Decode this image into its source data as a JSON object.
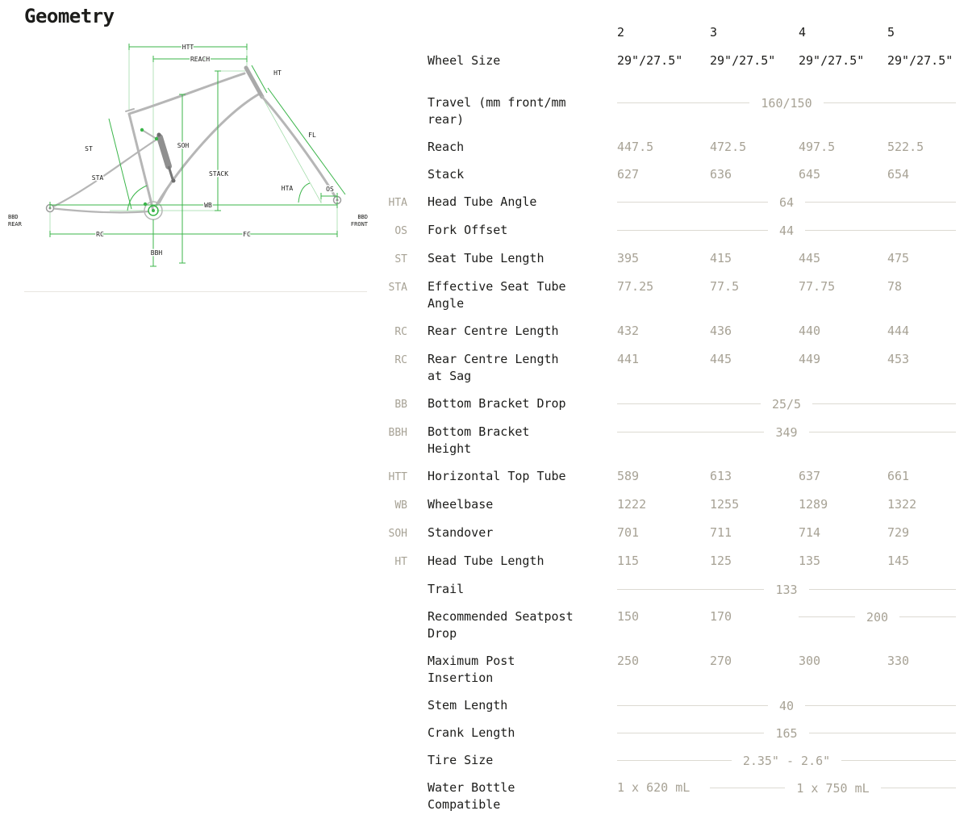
{
  "page": {
    "title": "Geometry"
  },
  "colors": {
    "accent_green": "#3bb54a",
    "muted_value": "#a7a295",
    "text": "#1c1c1a",
    "span_line": "#dcdad2"
  },
  "diagram": {
    "labels": {
      "htt": "HTT",
      "reach": "REACH",
      "ht": "HT",
      "fl": "FL",
      "soh": "SOH",
      "st": "ST",
      "stack": "STACK",
      "sta": "STA",
      "hta": "HTA",
      "os": "OS",
      "wb": "WB",
      "rc": "RC",
      "fc": "FC",
      "bbh": "BBH",
      "bbd": "BBD",
      "rear": "REAR",
      "front": "FRONT"
    }
  },
  "table": {
    "size_headers": [
      "2",
      "3",
      "4",
      "5"
    ],
    "rows": [
      {
        "abbr": "",
        "label": "Wheel Size",
        "emphasis": true,
        "values": [
          "29\"/27.5\"",
          "29\"/27.5\"",
          "29\"/27.5\"",
          "29\"/27.5\""
        ]
      },
      {
        "abbr": "",
        "label": "Travel (mm front/mm rear)",
        "values": [],
        "span_value": "160/150"
      },
      {
        "abbr": "",
        "label": "Reach",
        "values": [
          "447.5",
          "472.5",
          "497.5",
          "522.5"
        ]
      },
      {
        "abbr": "",
        "label": "Stack",
        "values": [
          "627",
          "636",
          "645",
          "654"
        ]
      },
      {
        "abbr": "HTA",
        "label": "Head Tube Angle",
        "values": [],
        "span_value": "64"
      },
      {
        "abbr": "OS",
        "label": "Fork Offset",
        "values": [],
        "span_value": "44"
      },
      {
        "abbr": "ST",
        "label": "Seat Tube Length",
        "values": [
          "395",
          "415",
          "445",
          "475"
        ]
      },
      {
        "abbr": "STA",
        "label": "Effective Seat Tube Angle",
        "values": [
          "77.25",
          "77.5",
          "77.75",
          "78"
        ]
      },
      {
        "abbr": "RC",
        "label": "Rear Centre Length",
        "values": [
          "432",
          "436",
          "440",
          "444"
        ]
      },
      {
        "abbr": "RC",
        "label": "Rear Centre Length at Sag",
        "values": [
          "441",
          "445",
          "449",
          "453"
        ]
      },
      {
        "abbr": "BB",
        "label": "Bottom Bracket Drop",
        "values": [],
        "span_value": "25/5"
      },
      {
        "abbr": "BBH",
        "label": "Bottom Bracket Height",
        "values": [],
        "span_value": "349"
      },
      {
        "abbr": "HTT",
        "label": "Horizontal Top Tube",
        "values": [
          "589",
          "613",
          "637",
          "661"
        ]
      },
      {
        "abbr": "WB",
        "label": "Wheelbase",
        "values": [
          "1222",
          "1255",
          "1289",
          "1322"
        ]
      },
      {
        "abbr": "SOH",
        "label": "Standover",
        "values": [
          "701",
          "711",
          "714",
          "729"
        ]
      },
      {
        "abbr": "HT",
        "label": "Head Tube Length",
        "values": [
          "115",
          "125",
          "135",
          "145"
        ]
      },
      {
        "abbr": "",
        "label": "Trail",
        "values": [],
        "span_value": "133"
      },
      {
        "abbr": "",
        "label": "Recommended Seatpost Drop",
        "values": [
          "150",
          "170"
        ],
        "span_value": "200"
      },
      {
        "abbr": "",
        "label": "Maximum Post Insertion",
        "values": [
          "250",
          "270",
          "300",
          "330"
        ]
      },
      {
        "abbr": "",
        "label": "Stem Length",
        "values": [],
        "span_value": "40"
      },
      {
        "abbr": "",
        "label": "Crank Length",
        "values": [],
        "span_value": "165"
      },
      {
        "abbr": "",
        "label": "Tire Size",
        "values": [],
        "span_value": "2.35\" - 2.6\""
      },
      {
        "abbr": "",
        "label": "Water Bottle Compatible",
        "values": [
          "1 x 620 mL"
        ],
        "span_value": "1 x 750 mL"
      }
    ]
  }
}
